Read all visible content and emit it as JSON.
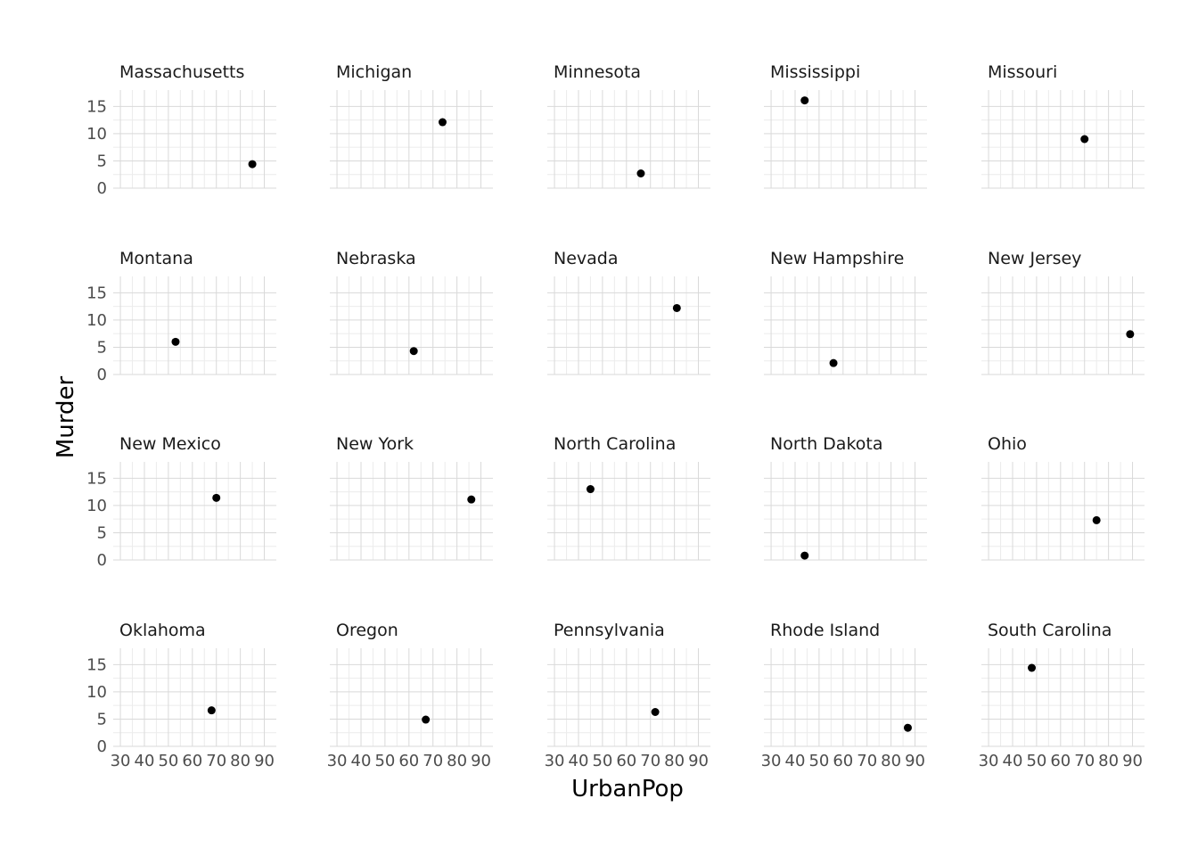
{
  "chart_data": {
    "type": "scatter",
    "facet": "State",
    "xlabel": "UrbanPop",
    "ylabel": "Murder",
    "xlim": [
      27,
      95
    ],
    "ylim": [
      0,
      18
    ],
    "xticks": [
      30,
      40,
      50,
      60,
      70,
      80,
      90
    ],
    "yticks": [
      0,
      5,
      10,
      15
    ],
    "grid": true,
    "point_color": "#000000",
    "panels": [
      {
        "name": "Massachusetts",
        "x": 85,
        "y": 4.4
      },
      {
        "name": "Michigan",
        "x": 74,
        "y": 12.1
      },
      {
        "name": "Minnesota",
        "x": 66,
        "y": 2.7
      },
      {
        "name": "Mississippi",
        "x": 44,
        "y": 16.1
      },
      {
        "name": "Missouri",
        "x": 70,
        "y": 9.0
      },
      {
        "name": "Montana",
        "x": 53,
        "y": 6.0
      },
      {
        "name": "Nebraska",
        "x": 62,
        "y": 4.3
      },
      {
        "name": "Nevada",
        "x": 81,
        "y": 12.2
      },
      {
        "name": "New Hampshire",
        "x": 56,
        "y": 2.1
      },
      {
        "name": "New Jersey",
        "x": 89,
        "y": 7.4
      },
      {
        "name": "New Mexico",
        "x": 70,
        "y": 11.4
      },
      {
        "name": "New York",
        "x": 86,
        "y": 11.1
      },
      {
        "name": "North Carolina",
        "x": 45,
        "y": 13.0
      },
      {
        "name": "North Dakota",
        "x": 44,
        "y": 0.8
      },
      {
        "name": "Ohio",
        "x": 75,
        "y": 7.3
      },
      {
        "name": "Oklahoma",
        "x": 68,
        "y": 6.6
      },
      {
        "name": "Oregon",
        "x": 67,
        "y": 4.9
      },
      {
        "name": "Pennsylvania",
        "x": 72,
        "y": 6.3
      },
      {
        "name": "Rhode Island",
        "x": 87,
        "y": 3.4
      },
      {
        "name": "South Carolina",
        "x": 48,
        "y": 14.4
      }
    ]
  }
}
